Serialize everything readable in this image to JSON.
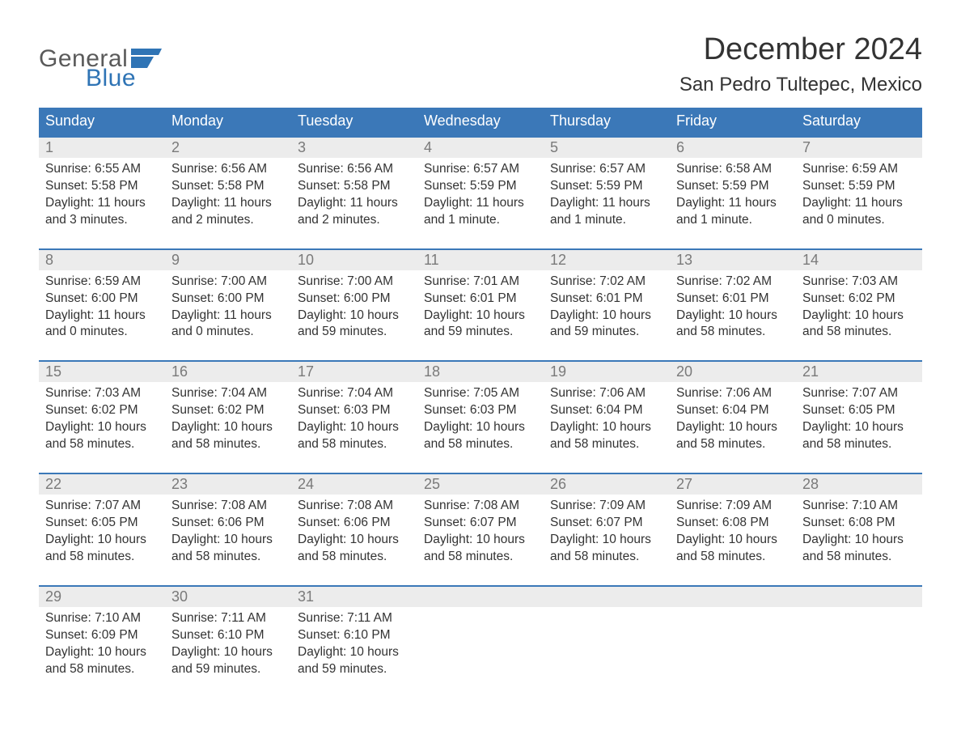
{
  "brand": {
    "word1": "General",
    "word2": "Blue",
    "word1_color": "#5a5a5a",
    "word2_color": "#2f74b5"
  },
  "title": "December 2024",
  "location": "San Pedro Tultepec, Mexico",
  "colors": {
    "header_bg": "#3b78b8",
    "header_text": "#ffffff",
    "date_bg": "#ececec",
    "date_text": "#7a7a7a",
    "body_text": "#333333",
    "week_border": "#3b78b8",
    "page_bg": "#ffffff"
  },
  "day_names": [
    "Sunday",
    "Monday",
    "Tuesday",
    "Wednesday",
    "Thursday",
    "Friday",
    "Saturday"
  ],
  "weeks": [
    [
      {
        "n": "1",
        "sunrise": "6:55 AM",
        "sunset": "5:58 PM",
        "daylight": "11 hours and 3 minutes."
      },
      {
        "n": "2",
        "sunrise": "6:56 AM",
        "sunset": "5:58 PM",
        "daylight": "11 hours and 2 minutes."
      },
      {
        "n": "3",
        "sunrise": "6:56 AM",
        "sunset": "5:58 PM",
        "daylight": "11 hours and 2 minutes."
      },
      {
        "n": "4",
        "sunrise": "6:57 AM",
        "sunset": "5:59 PM",
        "daylight": "11 hours and 1 minute."
      },
      {
        "n": "5",
        "sunrise": "6:57 AM",
        "sunset": "5:59 PM",
        "daylight": "11 hours and 1 minute."
      },
      {
        "n": "6",
        "sunrise": "6:58 AM",
        "sunset": "5:59 PM",
        "daylight": "11 hours and 1 minute."
      },
      {
        "n": "7",
        "sunrise": "6:59 AM",
        "sunset": "5:59 PM",
        "daylight": "11 hours and 0 minutes."
      }
    ],
    [
      {
        "n": "8",
        "sunrise": "6:59 AM",
        "sunset": "6:00 PM",
        "daylight": "11 hours and 0 minutes."
      },
      {
        "n": "9",
        "sunrise": "7:00 AM",
        "sunset": "6:00 PM",
        "daylight": "11 hours and 0 minutes."
      },
      {
        "n": "10",
        "sunrise": "7:00 AM",
        "sunset": "6:00 PM",
        "daylight": "10 hours and 59 minutes."
      },
      {
        "n": "11",
        "sunrise": "7:01 AM",
        "sunset": "6:01 PM",
        "daylight": "10 hours and 59 minutes."
      },
      {
        "n": "12",
        "sunrise": "7:02 AM",
        "sunset": "6:01 PM",
        "daylight": "10 hours and 59 minutes."
      },
      {
        "n": "13",
        "sunrise": "7:02 AM",
        "sunset": "6:01 PM",
        "daylight": "10 hours and 58 minutes."
      },
      {
        "n": "14",
        "sunrise": "7:03 AM",
        "sunset": "6:02 PM",
        "daylight": "10 hours and 58 minutes."
      }
    ],
    [
      {
        "n": "15",
        "sunrise": "7:03 AM",
        "sunset": "6:02 PM",
        "daylight": "10 hours and 58 minutes."
      },
      {
        "n": "16",
        "sunrise": "7:04 AM",
        "sunset": "6:02 PM",
        "daylight": "10 hours and 58 minutes."
      },
      {
        "n": "17",
        "sunrise": "7:04 AM",
        "sunset": "6:03 PM",
        "daylight": "10 hours and 58 minutes."
      },
      {
        "n": "18",
        "sunrise": "7:05 AM",
        "sunset": "6:03 PM",
        "daylight": "10 hours and 58 minutes."
      },
      {
        "n": "19",
        "sunrise": "7:06 AM",
        "sunset": "6:04 PM",
        "daylight": "10 hours and 58 minutes."
      },
      {
        "n": "20",
        "sunrise": "7:06 AM",
        "sunset": "6:04 PM",
        "daylight": "10 hours and 58 minutes."
      },
      {
        "n": "21",
        "sunrise": "7:07 AM",
        "sunset": "6:05 PM",
        "daylight": "10 hours and 58 minutes."
      }
    ],
    [
      {
        "n": "22",
        "sunrise": "7:07 AM",
        "sunset": "6:05 PM",
        "daylight": "10 hours and 58 minutes."
      },
      {
        "n": "23",
        "sunrise": "7:08 AM",
        "sunset": "6:06 PM",
        "daylight": "10 hours and 58 minutes."
      },
      {
        "n": "24",
        "sunrise": "7:08 AM",
        "sunset": "6:06 PM",
        "daylight": "10 hours and 58 minutes."
      },
      {
        "n": "25",
        "sunrise": "7:08 AM",
        "sunset": "6:07 PM",
        "daylight": "10 hours and 58 minutes."
      },
      {
        "n": "26",
        "sunrise": "7:09 AM",
        "sunset": "6:07 PM",
        "daylight": "10 hours and 58 minutes."
      },
      {
        "n": "27",
        "sunrise": "7:09 AM",
        "sunset": "6:08 PM",
        "daylight": "10 hours and 58 minutes."
      },
      {
        "n": "28",
        "sunrise": "7:10 AM",
        "sunset": "6:08 PM",
        "daylight": "10 hours and 58 minutes."
      }
    ],
    [
      {
        "n": "29",
        "sunrise": "7:10 AM",
        "sunset": "6:09 PM",
        "daylight": "10 hours and 58 minutes."
      },
      {
        "n": "30",
        "sunrise": "7:11 AM",
        "sunset": "6:10 PM",
        "daylight": "10 hours and 59 minutes."
      },
      {
        "n": "31",
        "sunrise": "7:11 AM",
        "sunset": "6:10 PM",
        "daylight": "10 hours and 59 minutes."
      },
      null,
      null,
      null,
      null
    ]
  ],
  "labels": {
    "sunrise": "Sunrise:",
    "sunset": "Sunset:",
    "daylight": "Daylight:"
  }
}
